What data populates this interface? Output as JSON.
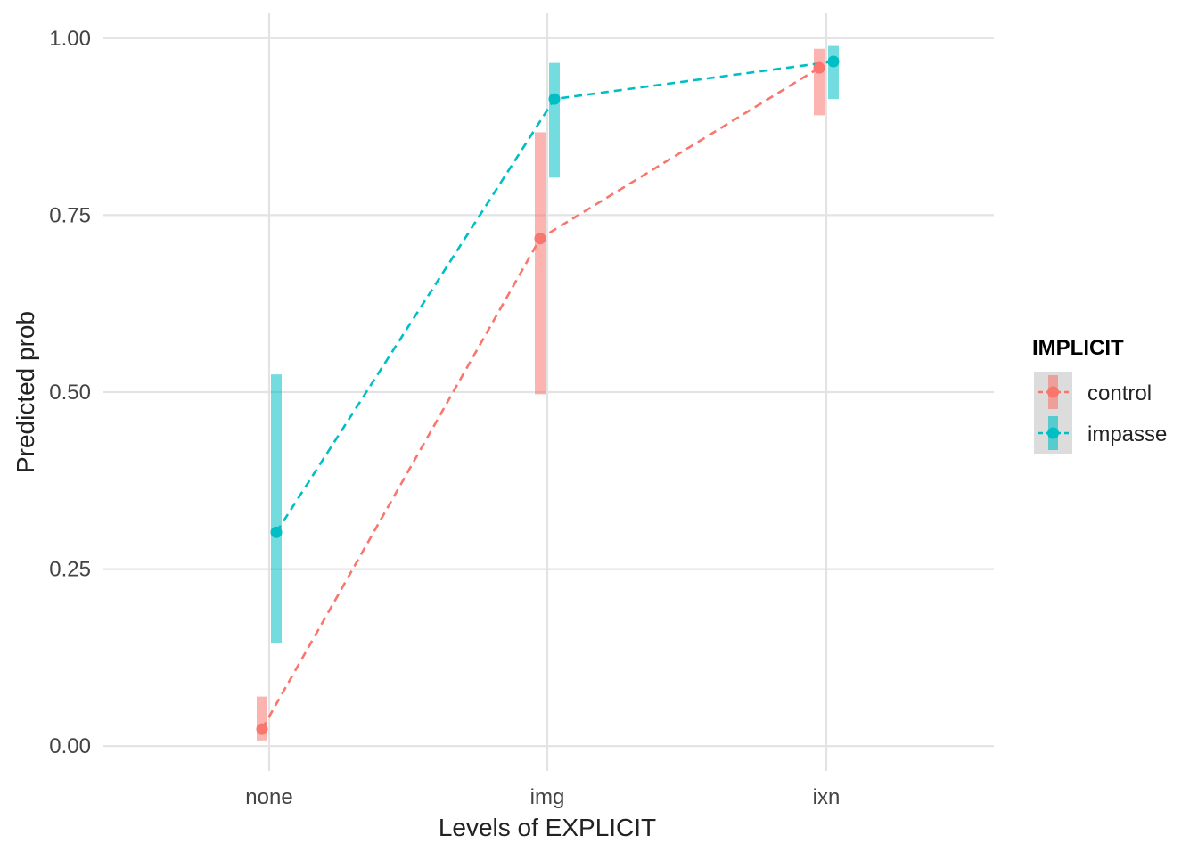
{
  "chart_data": {
    "type": "line",
    "title": "",
    "xlabel": "Levels of EXPLICIT",
    "ylabel": "Predicted prob",
    "categories": [
      "none",
      "img",
      "ixn"
    ],
    "ylim": [
      -0.035,
      1.035
    ],
    "yticks": [
      0.0,
      0.25,
      0.5,
      0.75,
      1.0
    ],
    "ytick_labels": [
      "0.00",
      "0.25",
      "0.50",
      "0.75",
      "1.00"
    ],
    "grid": true,
    "legend": {
      "title": "IMPLICIT",
      "position": "right"
    },
    "series": [
      {
        "name": "control",
        "color": "#F8766D",
        "values": [
          0.024,
          0.717,
          0.958
        ],
        "ci_low": [
          0.008,
          0.497,
          0.891
        ],
        "ci_high": [
          0.07,
          0.867,
          0.985
        ]
      },
      {
        "name": "impasse",
        "color": "#00BFC4",
        "values": [
          0.302,
          0.914,
          0.967
        ],
        "ci_low": [
          0.145,
          0.803,
          0.914
        ],
        "ci_high": [
          0.525,
          0.965,
          0.989
        ]
      }
    ]
  }
}
